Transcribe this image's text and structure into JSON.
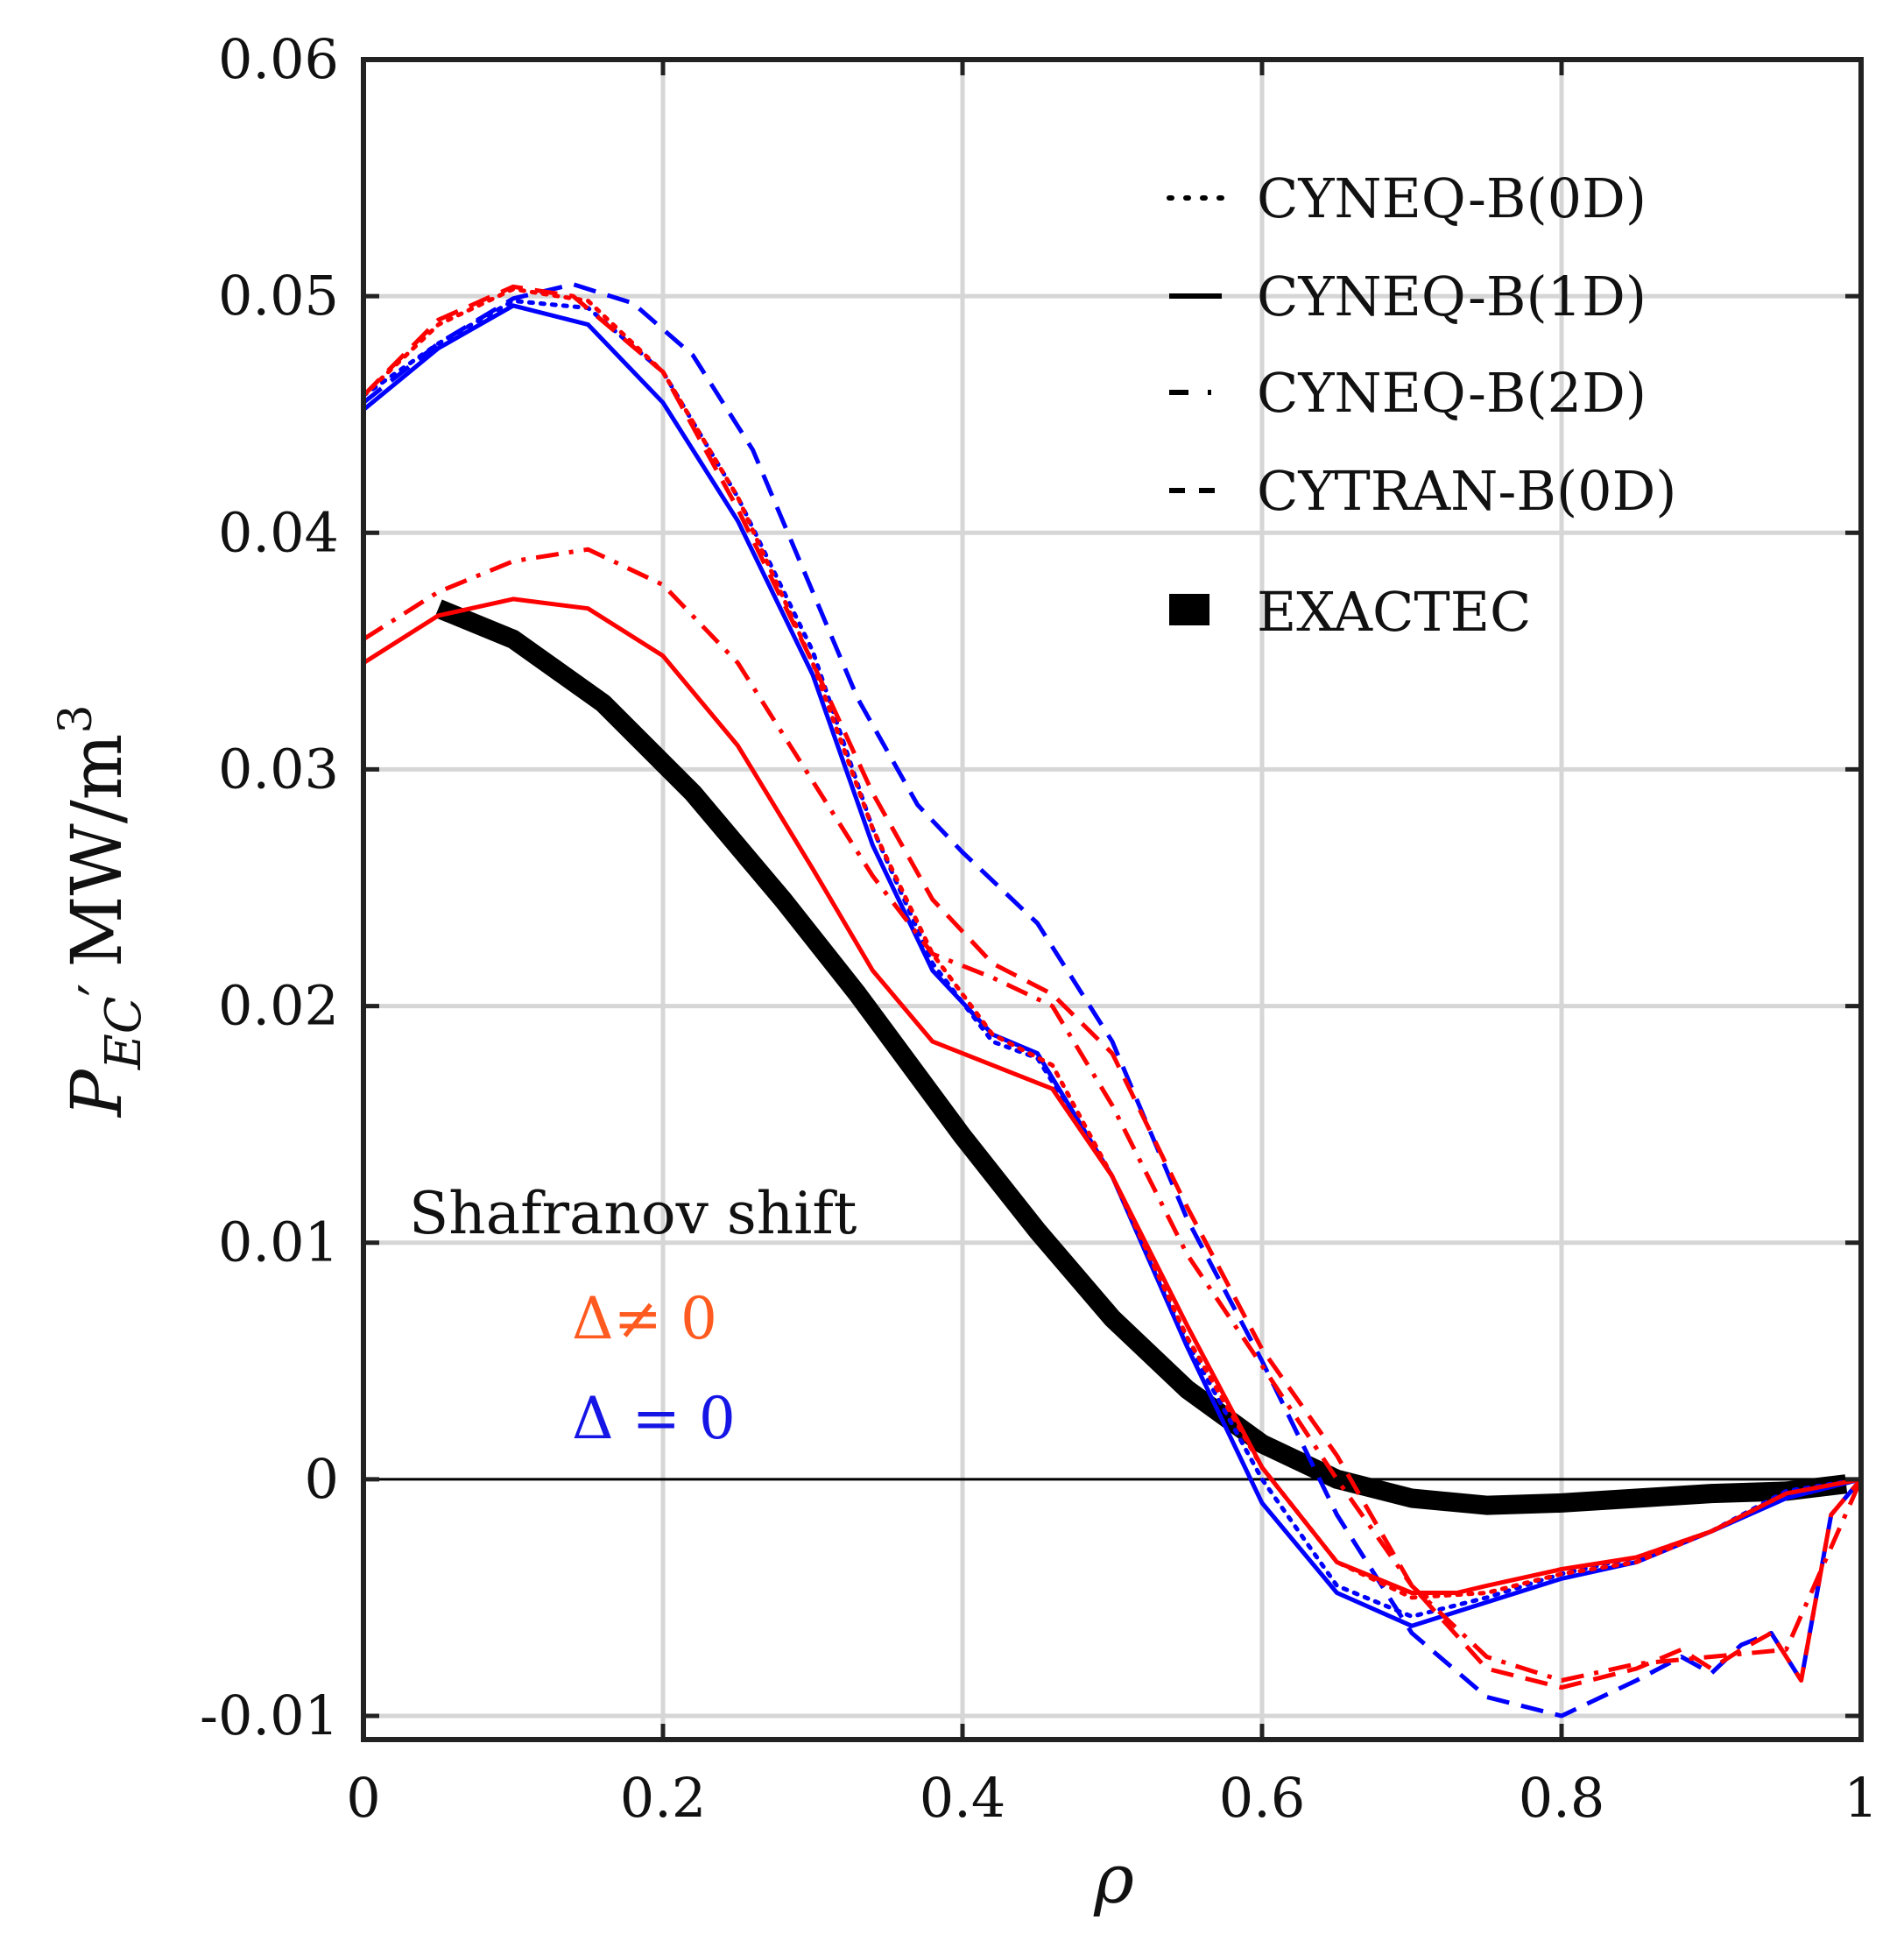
{
  "chart_data": {
    "type": "line",
    "title": "",
    "xlabel": "ρ",
    "ylabel": {
      "main": "P",
      "sub": "EC",
      "prime": "′",
      "units": "MW/m",
      "sup": "3"
    },
    "xlim": [
      0,
      1
    ],
    "ylim": [
      -0.011,
      0.06
    ],
    "xticks": [
      "0",
      "0.2",
      "0.4",
      "0.6",
      "0.8",
      "1"
    ],
    "yticks": [
      "-0.01",
      "0",
      "0.01",
      "0.02",
      "0.03",
      "0.04",
      "0.05",
      "0.06"
    ],
    "xtick_values": [
      0,
      0.2,
      0.4,
      0.6,
      0.8,
      1
    ],
    "ytick_values": [
      -0.01,
      0,
      0.01,
      0.02,
      0.03,
      0.04,
      0.05,
      0.06
    ],
    "grid": true,
    "legend_position": "top-right",
    "legend": [
      {
        "symbol": "...",
        "label": "CYNEQ-B(0D)",
        "style": "dotted"
      },
      {
        "symbol": "—",
        "label": "CYNEQ-B(1D)",
        "style": "solid"
      },
      {
        "symbol": "-.",
        "label": "CYNEQ-B(2D)",
        "style": "dashdot"
      },
      {
        "symbol": "- -",
        "label": "CYTRAN-B(0D)",
        "style": "dashed"
      },
      {
        "symbol": "■",
        "label": "EXACTEC",
        "style": "thick"
      }
    ],
    "annotations": {
      "heading": "Shafranov shift",
      "shift_nonzero": "Δ≠ 0",
      "shift_zero": "Δ = 0",
      "shift_nonzero_color": "#ff5a1f",
      "shift_zero_color": "#1515e6"
    },
    "colors": {
      "shift_nonzero": "#ff0000",
      "shift_zero": "#0000ff",
      "exactec": "#000000"
    },
    "series": [
      {
        "key": "exactec",
        "color": "#000000",
        "style": "thick",
        "x": [
          0.05,
          0.1,
          0.16,
          0.22,
          0.28,
          0.33,
          0.4,
          0.45,
          0.5,
          0.55,
          0.6,
          0.65,
          0.7,
          0.75,
          0.8,
          0.85,
          0.9,
          0.95,
          0.99
        ],
        "y": [
          0.0368,
          0.0355,
          0.0328,
          0.029,
          0.0245,
          0.0205,
          0.0145,
          0.0105,
          0.0068,
          0.0038,
          0.0015,
          0.0,
          -0.0008,
          -0.0011,
          -0.001,
          -0.0008,
          -0.0006,
          -0.0005,
          -0.0002
        ]
      },
      {
        "key": "cytran_blue",
        "color": "#0000ff",
        "style": "dashed",
        "x": [
          0,
          0.05,
          0.1,
          0.14,
          0.18,
          0.22,
          0.26,
          0.3,
          0.33,
          0.37,
          0.4,
          0.45,
          0.5,
          0.55,
          0.6,
          0.65,
          0.7,
          0.75,
          0.8,
          0.85,
          0.88,
          0.9,
          0.92,
          0.94,
          0.96,
          0.98,
          1.0
        ],
        "y": [
          0.0455,
          0.048,
          0.0499,
          0.0505,
          0.0497,
          0.0475,
          0.0435,
          0.0375,
          0.033,
          0.0285,
          0.0265,
          0.0235,
          0.0185,
          0.011,
          0.005,
          -0.0015,
          -0.0065,
          -0.0092,
          -0.01,
          -0.0085,
          -0.0075,
          -0.0082,
          -0.007,
          -0.0065,
          -0.0085,
          -0.0015,
          0.0
        ]
      },
      {
        "key": "cyneq0d_blue",
        "color": "#0000ff",
        "style": "dotted",
        "x": [
          0,
          0.05,
          0.1,
          0.15,
          0.2,
          0.25,
          0.3,
          0.34,
          0.38,
          0.42,
          0.45,
          0.5,
          0.55,
          0.6,
          0.65,
          0.7,
          0.75,
          0.8,
          0.85,
          0.9,
          0.95,
          1.0
        ],
        "y": [
          0.0458,
          0.048,
          0.0498,
          0.0495,
          0.0468,
          0.0415,
          0.035,
          0.0275,
          0.0218,
          0.0185,
          0.0178,
          0.0128,
          0.0058,
          0.0,
          -0.0045,
          -0.0058,
          -0.005,
          -0.004,
          -0.0033,
          -0.0022,
          -0.0005,
          0.0
        ]
      },
      {
        "key": "cyneq1d_blue",
        "color": "#0000ff",
        "style": "solid",
        "x": [
          0,
          0.05,
          0.1,
          0.15,
          0.2,
          0.25,
          0.3,
          0.34,
          0.38,
          0.42,
          0.45,
          0.5,
          0.55,
          0.6,
          0.65,
          0.7,
          0.75,
          0.8,
          0.85,
          0.9,
          0.95,
          1.0
        ],
        "y": [
          0.0452,
          0.0478,
          0.0496,
          0.0488,
          0.0455,
          0.0405,
          0.034,
          0.0268,
          0.0215,
          0.0188,
          0.018,
          0.0128,
          0.0056,
          -0.001,
          -0.0048,
          -0.0062,
          -0.0052,
          -0.0042,
          -0.0035,
          -0.0022,
          -0.0008,
          0.0
        ]
      },
      {
        "key": "cyneq0d_red",
        "color": "#ff0000",
        "style": "dotted",
        "x": [
          0,
          0.05,
          0.1,
          0.15,
          0.2,
          0.25,
          0.3,
          0.34,
          0.38,
          0.42,
          0.46,
          0.5,
          0.55,
          0.6,
          0.65,
          0.7,
          0.75,
          0.8,
          0.85,
          0.9,
          0.95,
          1.0
        ],
        "y": [
          0.0458,
          0.0488,
          0.0503,
          0.0498,
          0.0468,
          0.0415,
          0.0345,
          0.0275,
          0.0222,
          0.0188,
          0.0175,
          0.0128,
          0.006,
          0.0005,
          -0.0035,
          -0.005,
          -0.0048,
          -0.004,
          -0.0035,
          -0.0022,
          -0.0006,
          0.0
        ]
      },
      {
        "key": "cytran_red",
        "color": "#ff0000",
        "style": "dashed",
        "x": [
          0,
          0.05,
          0.1,
          0.14,
          0.2,
          0.25,
          0.3,
          0.34,
          0.38,
          0.42,
          0.46,
          0.5,
          0.55,
          0.6,
          0.65,
          0.7,
          0.75,
          0.8,
          0.85,
          0.88,
          0.9,
          0.92,
          0.94,
          0.96,
          0.98,
          1.0
        ],
        "y": [
          0.0458,
          0.049,
          0.0504,
          0.05,
          0.0468,
          0.041,
          0.0345,
          0.029,
          0.0245,
          0.0218,
          0.0205,
          0.018,
          0.0115,
          0.0055,
          0.001,
          -0.0045,
          -0.008,
          -0.0088,
          -0.008,
          -0.0072,
          -0.008,
          -0.0072,
          -0.0065,
          -0.0085,
          -0.0015,
          0.0
        ]
      },
      {
        "key": "cyneq2d_red",
        "color": "#ff0000",
        "style": "dashdot",
        "x": [
          0,
          0.05,
          0.1,
          0.15,
          0.2,
          0.25,
          0.3,
          0.34,
          0.38,
          0.42,
          0.46,
          0.5,
          0.55,
          0.6,
          0.65,
          0.7,
          0.75,
          0.8,
          0.85,
          0.9,
          0.95,
          1.0
        ],
        "y": [
          0.0355,
          0.0375,
          0.0388,
          0.0393,
          0.0378,
          0.0345,
          0.0295,
          0.0255,
          0.0222,
          0.0212,
          0.02,
          0.0158,
          0.0095,
          0.0048,
          0.0,
          -0.0045,
          -0.0075,
          -0.0085,
          -0.0078,
          -0.0075,
          -0.0072,
          0.0
        ]
      },
      {
        "key": "cyneq1d_red",
        "color": "#ff0000",
        "style": "solid",
        "x": [
          0,
          0.05,
          0.1,
          0.15,
          0.2,
          0.25,
          0.3,
          0.34,
          0.38,
          0.42,
          0.46,
          0.5,
          0.55,
          0.6,
          0.65,
          0.7,
          0.73,
          0.75,
          0.8,
          0.85,
          0.9,
          0.95,
          1.0
        ],
        "y": [
          0.0345,
          0.0365,
          0.0372,
          0.0368,
          0.0348,
          0.031,
          0.0258,
          0.0215,
          0.0185,
          0.0175,
          0.0165,
          0.0128,
          0.0065,
          0.0005,
          -0.0035,
          -0.0048,
          -0.0048,
          -0.0045,
          -0.0038,
          -0.0033,
          -0.0022,
          -0.0006,
          0.0
        ]
      }
    ]
  }
}
